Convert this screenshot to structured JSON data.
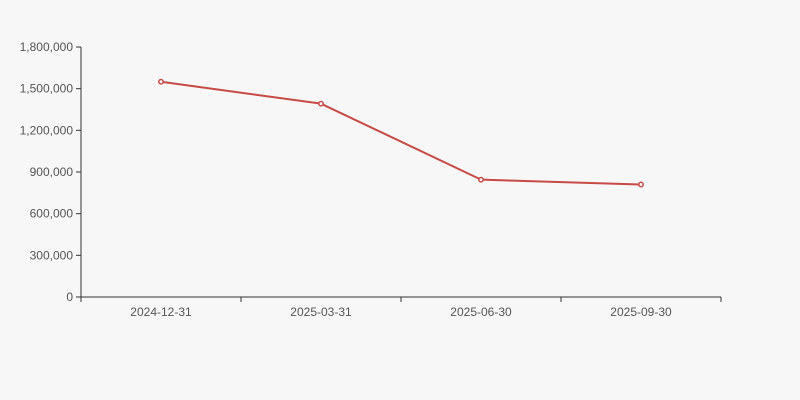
{
  "page": {
    "background_color": "#f7f7f7"
  },
  "chart_data": {
    "type": "line",
    "categories": [
      "2024-12-31",
      "2025-03-31",
      "2025-06-30",
      "2025-09-30"
    ],
    "series": [
      {
        "name": "value",
        "values": [
          1550000,
          1392000,
          845000,
          810000
        ]
      }
    ],
    "ylim": [
      0,
      1800000
    ],
    "ytick_interval": 300000,
    "ytick_labels": [
      "0",
      "300,000",
      "600,000",
      "900,000",
      "1,200,000",
      "1,500,000",
      "1,800,000"
    ],
    "grid": false,
    "legend": "none",
    "line_color": "#c64a45",
    "marker": "empty-circle",
    "marker_fill": "#fdfdfd",
    "axis_color": "#333333",
    "label_color": "#555555"
  }
}
